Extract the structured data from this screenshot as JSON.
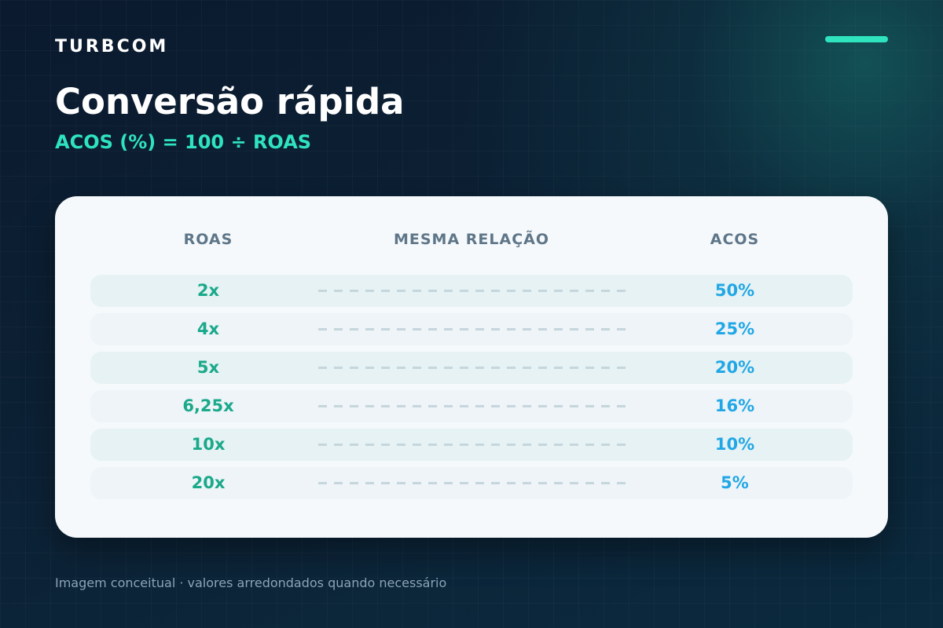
{
  "brand": "TURBCOM",
  "title": "Conversão rápida",
  "formula": "ACOS (%) = 100 ÷ ROAS",
  "table": {
    "headers": {
      "roas": "ROAS",
      "relation": "MESMA RELAÇÃO",
      "acos": "ACOS"
    },
    "rows": [
      {
        "roas": "2x",
        "acos": "50%"
      },
      {
        "roas": "4x",
        "acos": "25%"
      },
      {
        "roas": "5x",
        "acos": "20%"
      },
      {
        "roas": "6,25x",
        "acos": "16%"
      },
      {
        "roas": "10x",
        "acos": "10%"
      },
      {
        "roas": "20x",
        "acos": "5%"
      }
    ]
  },
  "footnote": "Imagem conceitual · valores arredondados quando necessário",
  "colors": {
    "accent": "#2fe3bf",
    "roas_value": "#1aa98a",
    "acos_value": "#21a7e6",
    "background": "#0a1c30",
    "card": "#f5f9fc"
  }
}
